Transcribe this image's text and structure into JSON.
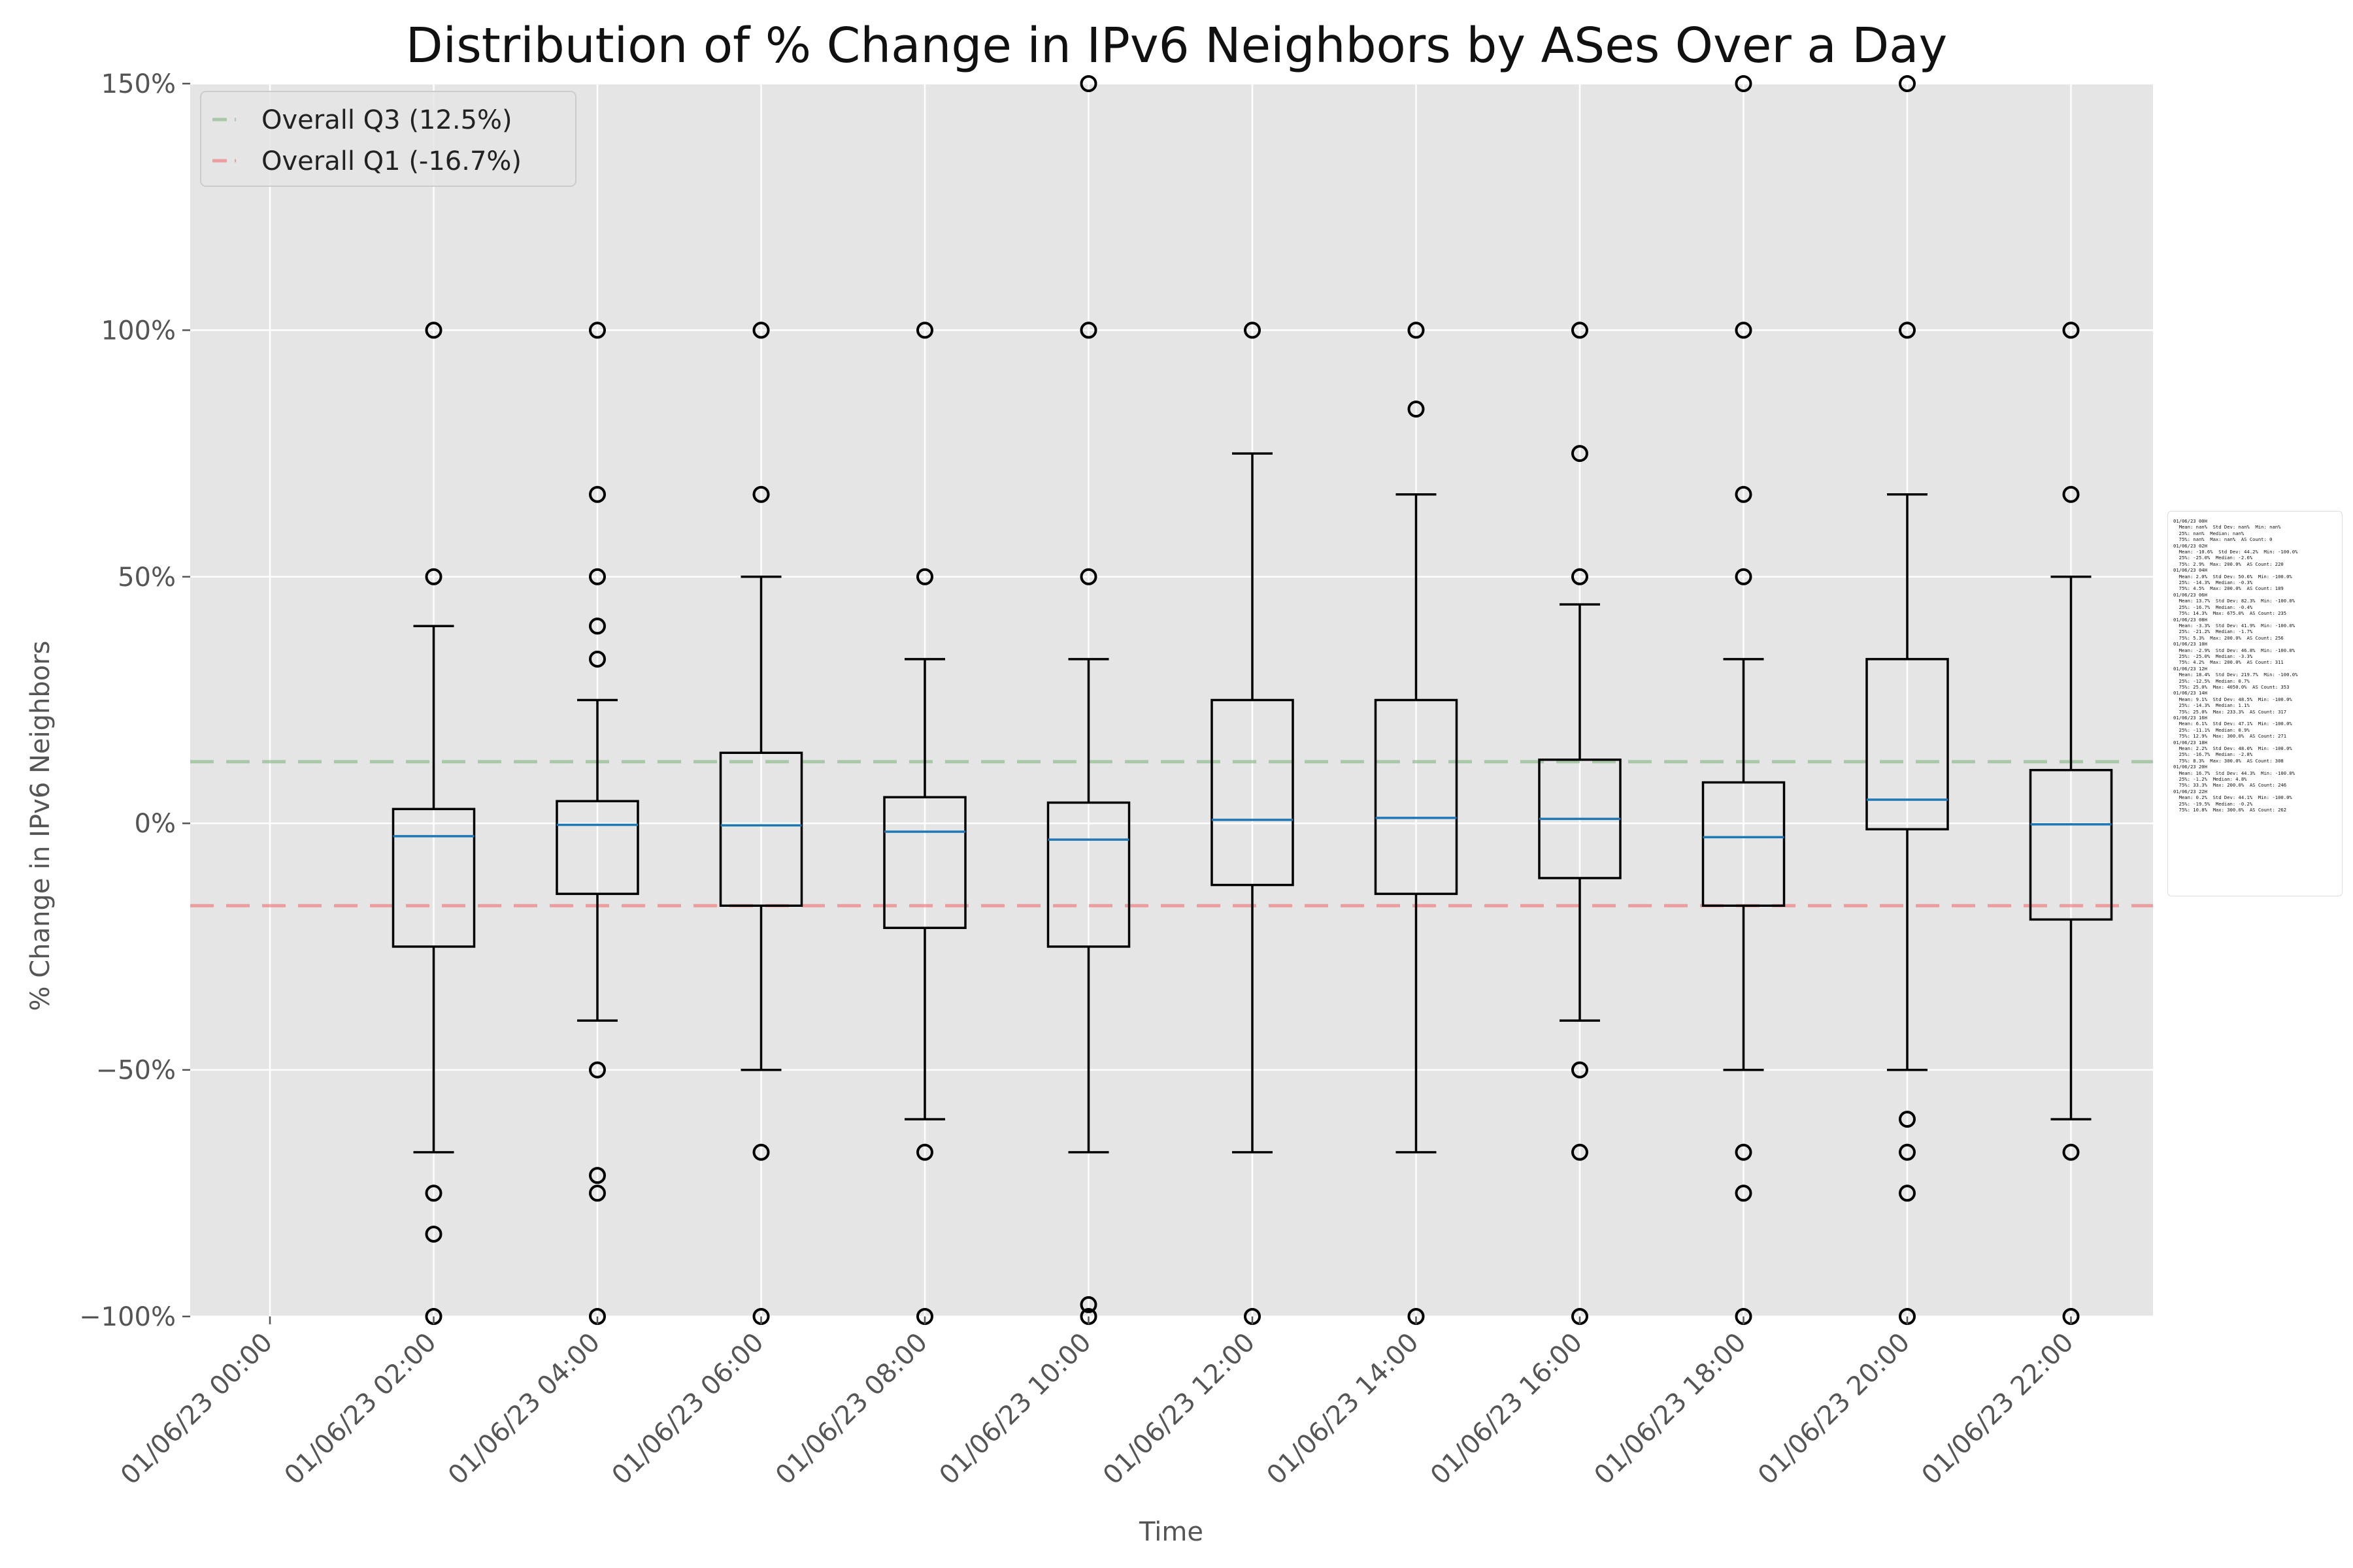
{
  "chart_data": {
    "type": "box",
    "title": "Distribution of % Change in IPv6 Neighbors by ASes Over a Day",
    "xlabel": "Time",
    "ylabel": "% Change in IPv6 Neighbors",
    "ylim": [
      -100,
      150
    ],
    "yticks": [
      -100,
      -50,
      0,
      50,
      100,
      150
    ],
    "ytick_labels": [
      "−100%",
      "−50%",
      "0%",
      "50%",
      "100%",
      "150%"
    ],
    "grid": true,
    "legend_position": "top-left",
    "reference_lines": [
      {
        "name": "Overall Q3 (12.5%)",
        "value": 12.5,
        "color": "#8fbc8f"
      },
      {
        "name": "Overall Q1 (-16.7%)",
        "value": -16.7,
        "color": "#f08080"
      }
    ],
    "categories": [
      "01/06/23 00:00",
      "01/06/23 02:00",
      "01/06/23 04:00",
      "01/06/23 06:00",
      "01/06/23 08:00",
      "01/06/23 10:00",
      "01/06/23 12:00",
      "01/06/23 14:00",
      "01/06/23 16:00",
      "01/06/23 18:00",
      "01/06/23 20:00",
      "01/06/23 22:00"
    ],
    "boxes": [
      null,
      {
        "whisker_low": -66.7,
        "q1": -25,
        "median": -2.6,
        "q3": 2.9,
        "whisker_high": 40,
        "outliers": [
          100,
          50,
          -75,
          -83.3,
          -100
        ]
      },
      {
        "whisker_low": -40,
        "q1": -14.3,
        "median": -0.3,
        "q3": 4.5,
        "whisker_high": 25,
        "outliers": [
          100,
          66.7,
          50,
          40,
          33.3,
          -50,
          -71.4,
          -75,
          -100
        ]
      },
      {
        "whisker_low": -50,
        "q1": -16.7,
        "median": -0.4,
        "q3": 14.3,
        "whisker_high": 50,
        "outliers": [
          100,
          66.7,
          -66.7,
          -100
        ]
      },
      {
        "whisker_low": -60,
        "q1": -21.2,
        "median": -1.7,
        "q3": 5.3,
        "whisker_high": 33.3,
        "outliers": [
          100,
          50,
          -66.7,
          -100
        ]
      },
      {
        "whisker_low": -66.7,
        "q1": -25,
        "median": -3.3,
        "q3": 4.2,
        "whisker_high": 33.3,
        "outliers": [
          150,
          100,
          50,
          -97.6,
          -100
        ]
      },
      {
        "whisker_low": -66.7,
        "q1": -12.5,
        "median": 0.7,
        "q3": 25,
        "whisker_high": 75,
        "outliers": [
          100,
          -100
        ]
      },
      {
        "whisker_low": -66.7,
        "q1": -14.3,
        "median": 1.1,
        "q3": 25,
        "whisker_high": 66.7,
        "outliers": [
          100,
          84,
          -100
        ]
      },
      {
        "whisker_low": -40,
        "q1": -11.1,
        "median": 0.9,
        "q3": 12.9,
        "whisker_high": 44.4,
        "outliers": [
          100,
          75,
          50,
          -50,
          -66.7,
          -100
        ]
      },
      {
        "whisker_low": -50,
        "q1": -16.7,
        "median": -2.8,
        "q3": 8.3,
        "whisker_high": 33.3,
        "outliers": [
          150,
          100,
          66.7,
          50,
          -66.7,
          -75,
          -100
        ]
      },
      {
        "whisker_low": -50,
        "q1": -1.2,
        "median": 4.8,
        "q3": 33.3,
        "whisker_high": 66.7,
        "outliers": [
          150,
          100,
          -60,
          -66.7,
          -75,
          -100
        ]
      },
      {
        "whisker_low": -60,
        "q1": -19.5,
        "median": -0.2,
        "q3": 10.8,
        "whisker_high": 50,
        "outliers": [
          100,
          66.7,
          -66.7,
          -100
        ]
      }
    ],
    "annotation_text": "01/06/23 00H\n  Mean: nan%  Std Dev: nan%  Min: nan%\n  25%: nan%  Median: nan%\n  75%: nan%  Max: nan%  AS Count: 0\n01/06/23 02H\n  Mean: -10.6%  Std Dev: 44.2%  Min: -100.0%\n  25%: -25.0%  Median: -2.6%\n  75%: 2.9%  Max: 200.0%  AS Count: 220\n01/06/23 04H\n  Mean: 2.0%  Std Dev: 50.6%  Min: -100.0%\n  25%: -14.3%  Median: -0.3%\n  75%: 4.5%  Max: 200.0%  AS Count: 189\n01/06/23 06H\n  Mean: 13.7%  Std Dev: 82.3%  Min: -100.0%\n  25%: -16.7%  Median: -0.4%\n  75%: 14.3%  Max: 675.0%  AS Count: 235\n01/06/23 08H\n  Mean: -3.3%  Std Dev: 41.9%  Min: -100.0%\n  25%: -21.2%  Median: -1.7%\n  75%: 5.3%  Max: 200.0%  AS Count: 256\n01/06/23 10H\n  Mean: -2.9%  Std Dev: 46.8%  Min: -100.0%\n  25%: -25.0%  Median: -3.3%\n  75%: 4.2%  Max: 200.0%  AS Count: 311\n01/06/23 12H\n  Mean: 18.4%  Std Dev: 219.7%  Min: -100.0%\n  25%: -12.5%  Median: 0.7%\n  75%: 25.0%  Max: 4050.0%  AS Count: 353\n01/06/23 14H\n  Mean: 9.1%  Std Dev: 48.5%  Min: -100.0%\n  25%: -14.3%  Median: 1.1%\n  75%: 25.0%  Max: 233.3%  AS Count: 317\n01/06/23 16H\n  Mean: 6.1%  Std Dev: 47.1%  Min: -100.0%\n  25%: -11.1%  Median: 0.9%\n  75%: 12.9%  Max: 300.0%  AS Count: 271\n01/06/23 18H\n  Mean: 2.2%  Std Dev: 48.0%  Min: -100.0%\n  25%: -16.7%  Median: -2.8%\n  75%: 8.3%  Max: 300.0%  AS Count: 308\n01/06/23 20H\n  Mean: 16.7%  Std Dev: 44.3%  Min: -100.0%\n  25%: -1.2%  Median: 4.8%\n  75%: 33.3%  Max: 200.0%  AS Count: 246\n01/06/23 22H\n  Mean: 0.2%  Std Dev: 44.1%  Min: -100.0%\n  25%: -19.5%  Median: -0.2%\n  75%: 10.8%  Max: 300.0%  AS Count: 262"
  },
  "colors": {
    "plot_background": "#e5e5e5",
    "grid": "#ffffff",
    "box": "#000000",
    "median": "#1f77b4",
    "text": "#555555",
    "title": "#111111"
  }
}
